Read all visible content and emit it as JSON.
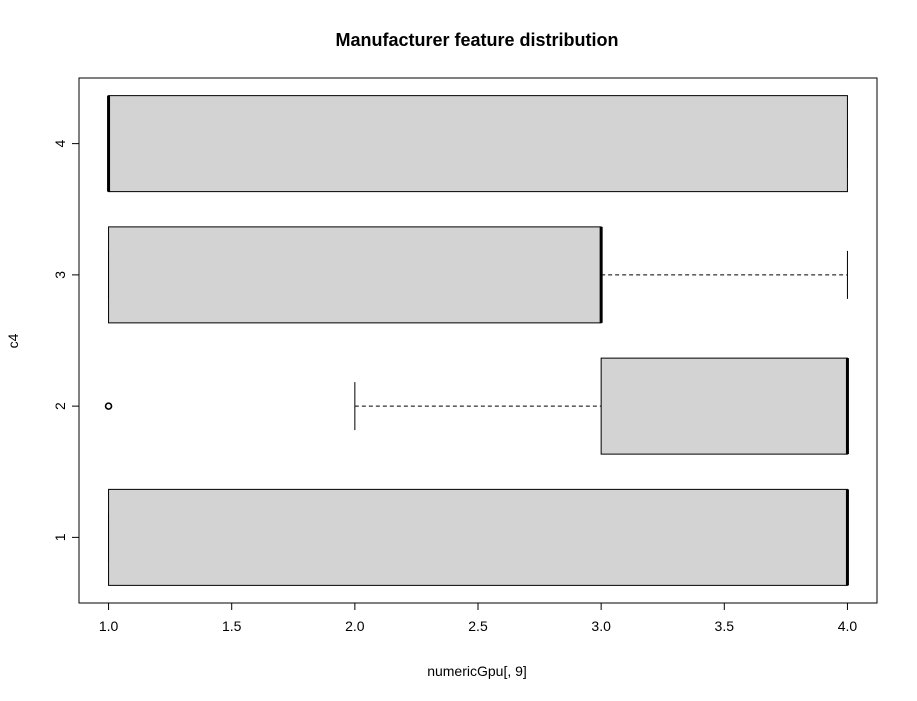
{
  "colors": {
    "box_fill": "#d3d3d3",
    "stroke": "#000000",
    "background": "#ffffff"
  },
  "chart_data": {
    "type": "boxplot",
    "orientation": "horizontal",
    "title": "Manufacturer feature distribution",
    "xlabel": "numericGpu[, 9]",
    "ylabel": "c4",
    "xlim": [
      0.88,
      4.12
    ],
    "x_ticks": [
      1.0,
      1.5,
      2.0,
      2.5,
      3.0,
      3.5,
      4.0
    ],
    "x_tick_labels": [
      "1.0",
      "1.5",
      "2.0",
      "2.5",
      "3.0",
      "3.5",
      "4.0"
    ],
    "categories": [
      "1",
      "2",
      "3",
      "4"
    ],
    "boxes": [
      {
        "group": "1",
        "whisker_low": 1,
        "q1": 1,
        "median": 4,
        "q3": 4,
        "whisker_high": 4,
        "outliers": []
      },
      {
        "group": "2",
        "whisker_low": 2,
        "q1": 3,
        "median": 4,
        "q3": 4,
        "whisker_high": 4,
        "outliers": [
          1
        ]
      },
      {
        "group": "3",
        "whisker_low": 1,
        "q1": 1,
        "median": 3,
        "q3": 3,
        "whisker_high": 4,
        "outliers": []
      },
      {
        "group": "4",
        "whisker_low": 1,
        "q1": 1,
        "median": 1,
        "q3": 4,
        "whisker_high": 4,
        "outliers": []
      }
    ],
    "grid": false,
    "legend": "none"
  }
}
